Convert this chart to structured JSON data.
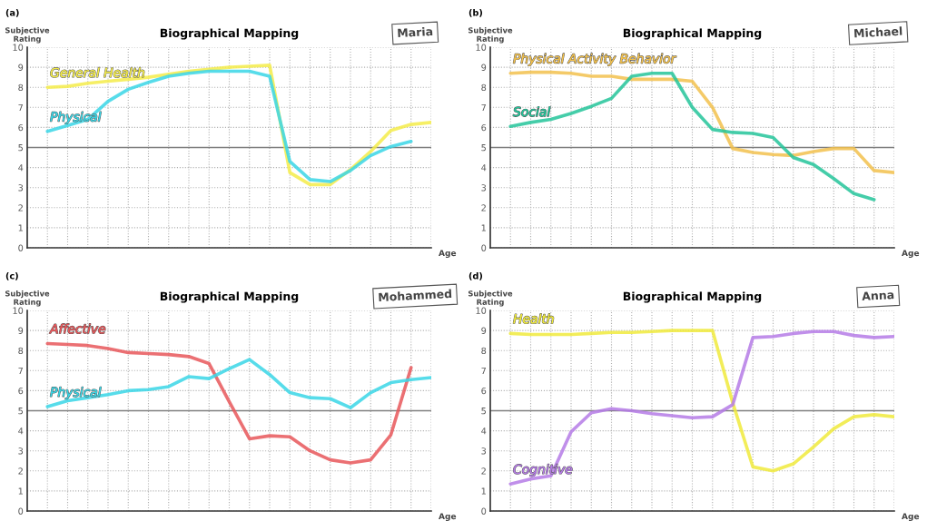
{
  "chart_data": [
    {
      "type": "line",
      "title": "Biographical Mapping",
      "xlabel": "Age",
      "ylabel": "Subjective\nRating",
      "annotations": [
        "(a)",
        "Maria"
      ],
      "categories": [
        null,
        null,
        null,
        null,
        null,
        null,
        null,
        null,
        null,
        null,
        null,
        null,
        null,
        null,
        null,
        null,
        null,
        null,
        null,
        null
      ],
      "ylim": [
        0,
        10
      ],
      "yticks": [
        0,
        1,
        2,
        3,
        4,
        5,
        6,
        7,
        8,
        9,
        10
      ],
      "grid": true,
      "ref_lines": [
        {
          "axis": "y",
          "value": 5,
          "color": "#7f7f7f"
        }
      ],
      "line_style": "solid",
      "series": [
        {
          "name": "General Health",
          "color": "#f4ec4a",
          "values": [
            8.0,
            8.05,
            8.2,
            8.3,
            8.4,
            8.5,
            8.65,
            8.8,
            8.9,
            9.0,
            9.05,
            9.1,
            3.75,
            3.15,
            3.15,
            3.9,
            4.8,
            5.85,
            6.15,
            6.25
          ]
        },
        {
          "name": "Physical",
          "color": "#3ad6e6",
          "values": [
            5.8,
            6.1,
            6.4,
            7.3,
            7.9,
            8.25,
            8.55,
            8.7,
            8.8,
            8.8,
            8.8,
            8.55,
            4.3,
            3.4,
            3.3,
            3.85,
            4.6,
            5.05,
            5.3,
            null
          ]
        }
      ]
    },
    {
      "type": "line",
      "title": "Biographical Mapping",
      "xlabel": "Age",
      "ylabel": "Subjective\nRating",
      "annotations": [
        "(b)",
        "Michael"
      ],
      "categories": [
        null,
        null,
        null,
        null,
        null,
        null,
        null,
        null,
        null,
        null,
        null,
        null,
        null,
        null,
        null,
        null,
        null,
        null,
        null,
        null
      ],
      "ylim": [
        0,
        10
      ],
      "yticks": [
        0,
        1,
        2,
        3,
        4,
        5,
        6,
        7,
        8,
        9,
        10
      ],
      "grid": true,
      "ref_lines": [
        {
          "axis": "y",
          "value": 5,
          "color": "#7f7f7f"
        }
      ],
      "line_style": "solid",
      "series": [
        {
          "name": "Physical Activity Behavior",
          "color": "#f2c14e",
          "values": [
            8.7,
            8.75,
            8.75,
            8.7,
            8.55,
            8.55,
            8.4,
            8.4,
            8.4,
            8.3,
            7.0,
            4.95,
            4.75,
            4.65,
            4.6,
            4.8,
            4.95,
            4.95,
            3.85,
            3.75
          ]
        },
        {
          "name": "Social",
          "color": "#25c49a",
          "values": [
            6.05,
            6.25,
            6.4,
            6.7,
            7.05,
            7.45,
            8.55,
            8.7,
            8.7,
            7.0,
            5.9,
            5.75,
            5.7,
            5.5,
            4.5,
            4.15,
            3.45,
            2.7,
            2.4,
            null
          ]
        }
      ]
    },
    {
      "type": "line",
      "title": "Biographical Mapping",
      "xlabel": "Age",
      "ylabel": "Subjective\nRating",
      "annotations": [
        "(c)",
        "Mohammed"
      ],
      "categories": [
        null,
        null,
        null,
        null,
        null,
        null,
        null,
        null,
        null,
        null,
        null,
        null,
        null,
        null,
        null,
        null,
        null,
        null,
        null,
        null
      ],
      "ylim": [
        0,
        10
      ],
      "yticks": [
        0,
        1,
        2,
        3,
        4,
        5,
        6,
        7,
        8,
        9,
        10
      ],
      "grid": true,
      "ref_lines": [
        {
          "axis": "y",
          "value": 5,
          "color": "#7f7f7f"
        }
      ],
      "line_style": "solid",
      "series": [
        {
          "name": "Affective",
          "color": "#e8575a",
          "values": [
            8.35,
            8.3,
            8.25,
            8.1,
            7.9,
            7.85,
            7.8,
            7.7,
            7.35,
            5.45,
            3.6,
            3.75,
            3.7,
            3.0,
            2.55,
            2.4,
            2.55,
            3.8,
            7.15,
            null
          ]
        },
        {
          "name": "Physical",
          "color": "#3ad6e6",
          "values": [
            5.2,
            5.5,
            5.65,
            5.8,
            6.0,
            6.05,
            6.2,
            6.7,
            6.6,
            7.1,
            7.55,
            6.8,
            5.9,
            5.65,
            5.6,
            5.15,
            5.9,
            6.4,
            6.55,
            6.65
          ]
        }
      ]
    },
    {
      "type": "line",
      "title": "Biographical Mapping",
      "xlabel": "Age",
      "ylabel": "Subjective\nRating",
      "annotations": [
        "(d)",
        "Anna"
      ],
      "categories": [
        null,
        null,
        null,
        null,
        null,
        null,
        null,
        null,
        null,
        null,
        null,
        null,
        null,
        null,
        null,
        null,
        null,
        null,
        null,
        null
      ],
      "ylim": [
        0,
        10
      ],
      "yticks": [
        0,
        1,
        2,
        3,
        4,
        5,
        6,
        7,
        8,
        9,
        10
      ],
      "grid": true,
      "ref_lines": [
        {
          "axis": "y",
          "value": 5,
          "color": "#7f7f7f"
        }
      ],
      "line_style": "solid",
      "series": [
        {
          "name": "Health",
          "color": "#f0ea3c",
          "values": [
            8.85,
            8.8,
            8.8,
            8.8,
            8.85,
            8.9,
            8.9,
            8.95,
            9.0,
            9.0,
            9.0,
            5.4,
            2.2,
            2.0,
            2.35,
            3.2,
            4.1,
            4.7,
            4.8,
            4.7
          ]
        },
        {
          "name": "Cognitive",
          "color": "#b57be6",
          "values": [
            1.35,
            1.6,
            1.75,
            3.95,
            4.9,
            5.1,
            5.0,
            4.85,
            4.75,
            4.65,
            4.7,
            5.3,
            8.65,
            8.7,
            8.85,
            8.95,
            8.95,
            8.75,
            8.65,
            8.7
          ]
        }
      ]
    }
  ]
}
